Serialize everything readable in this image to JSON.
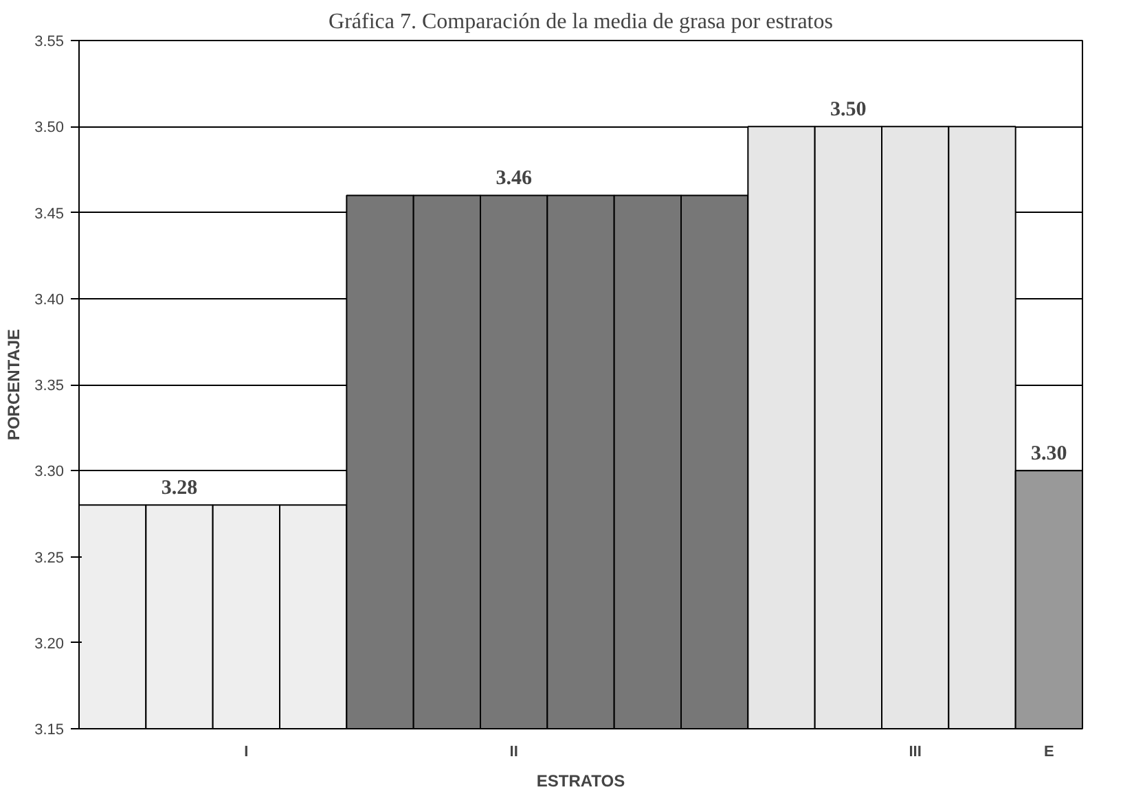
{
  "chart_data": {
    "type": "bar",
    "title": "Gráfica 7. Comparación de la media de grasa por estratos",
    "xlabel": "ESTRATOS",
    "ylabel": "PORCENTAJE",
    "categories": [
      null,
      null,
      "I",
      null,
      null,
      null,
      "II",
      null,
      null,
      null,
      null,
      null,
      "III",
      null,
      "E"
    ],
    "values": [
      3.28,
      3.28,
      3.28,
      3.28,
      3.46,
      3.46,
      3.46,
      3.46,
      3.46,
      3.46,
      3.5,
      3.5,
      3.5,
      3.5,
      3.3
    ],
    "colors": [
      "#eeeeee",
      "#eeeeee",
      "#eeeeee",
      "#eeeeee",
      "#777777",
      "#777777",
      "#777777",
      "#777777",
      "#777777",
      "#777777",
      "#e6e6e6",
      "#e6e6e6",
      "#e6e6e6",
      "#e6e6e6",
      "#999999"
    ],
    "value_labels": [
      null,
      "3.28",
      null,
      null,
      null,
      null,
      "3.46",
      null,
      null,
      null,
      null,
      "3.50",
      null,
      null,
      "3.30"
    ],
    "ylim": [
      3.15,
      3.55
    ],
    "yticks": [
      {
        "value": 3.15,
        "label": "3.15"
      },
      {
        "value": 3.2,
        "label": "3.20"
      },
      {
        "value": 3.25,
        "label": "3.25"
      },
      {
        "value": 3.3,
        "label": "3.30"
      },
      {
        "value": 3.35,
        "label": "3.35"
      },
      {
        "value": 3.4,
        "label": "3.40"
      },
      {
        "value": 3.45,
        "label": "3.45"
      },
      {
        "value": 3.5,
        "label": "3.50"
      },
      {
        "value": 3.55,
        "label": "3.55"
      }
    ],
    "grid": "y"
  }
}
